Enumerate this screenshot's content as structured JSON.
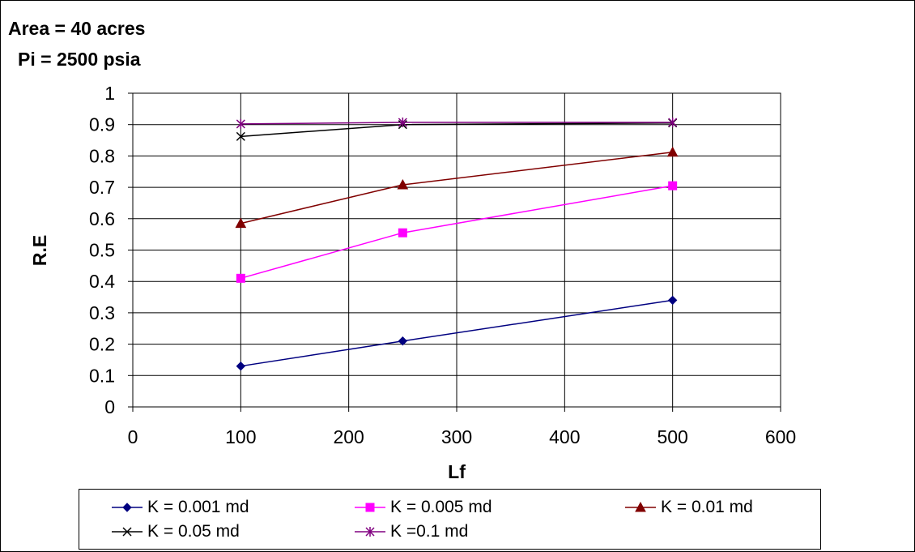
{
  "annotations": {
    "area": "Area = 40 acres",
    "pressure": "Pi = 2500 psia"
  },
  "chart_data": {
    "type": "line",
    "xlabel": "Lf",
    "ylabel": "R.E",
    "xlim": [
      0,
      600
    ],
    "ylim": [
      0,
      1
    ],
    "x_ticks": [
      "0",
      "100",
      "200",
      "300",
      "400",
      "500",
      "600"
    ],
    "y_ticks": [
      "0",
      "0.1",
      "0.2",
      "0.3",
      "0.4",
      "0.5",
      "0.6",
      "0.7",
      "0.8",
      "0.9",
      "1"
    ],
    "grid": true,
    "legend_position": "bottom",
    "x": [
      100,
      250,
      500
    ],
    "series": [
      {
        "name": "K = 0.001 md",
        "values": [
          0.13,
          0.21,
          0.34
        ],
        "color": "#000080",
        "marker": "diamond"
      },
      {
        "name": "K = 0.005 md",
        "values": [
          0.41,
          0.555,
          0.705
        ],
        "color": "#ff00ff",
        "marker": "square"
      },
      {
        "name": "K = 0.01 md",
        "values": [
          0.585,
          0.708,
          0.812
        ],
        "color": "#800000",
        "marker": "triangle"
      },
      {
        "name": "K = 0.05 md",
        "values": [
          0.862,
          0.9,
          0.905
        ],
        "color": "#000000",
        "marker": "x"
      },
      {
        "name": "K =0.1 md",
        "values": [
          0.902,
          0.907,
          0.907
        ],
        "color": "#800080",
        "marker": "star"
      }
    ]
  }
}
